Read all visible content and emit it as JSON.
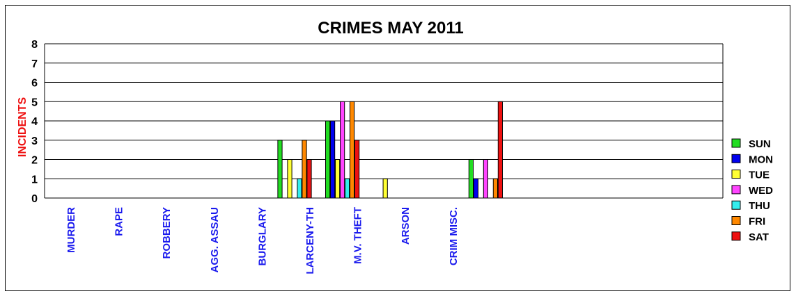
{
  "chart_data": {
    "type": "bar",
    "title": "CRIMES MAY 2011",
    "xlabel": "",
    "ylabel": "INCIDENTS",
    "ylim": [
      0,
      8
    ],
    "yticks": [
      "0",
      "1",
      "2",
      "3",
      "4",
      "5",
      "6",
      "7",
      "8"
    ],
    "grid": true,
    "legend_position": "right",
    "categories": [
      "MURDER",
      "RAPE",
      "ROBBERY",
      "AGG. ASSAU",
      "BURGLARY",
      "LARCENY-TH",
      "M.V. THEFT",
      "ARSON",
      "CRIM MISC."
    ],
    "series": [
      {
        "name": "SUN",
        "color": "#22dd22",
        "values": [
          0,
          0,
          0,
          0,
          3,
          4,
          0,
          0,
          2
        ]
      },
      {
        "name": "MON",
        "color": "#0000ee",
        "values": [
          0,
          0,
          0,
          0,
          0,
          4,
          0,
          0,
          1
        ]
      },
      {
        "name": "TUE",
        "color": "#ffff33",
        "values": [
          0,
          0,
          0,
          0,
          2,
          2,
          1,
          0,
          0
        ]
      },
      {
        "name": "WED",
        "color": "#ff44ff",
        "values": [
          0,
          0,
          0,
          0,
          0,
          5,
          0,
          0,
          2
        ]
      },
      {
        "name": "THU",
        "color": "#33eeee",
        "values": [
          0,
          0,
          0,
          0,
          1,
          1,
          0,
          0,
          0
        ]
      },
      {
        "name": "FRI",
        "color": "#ff8800",
        "values": [
          0,
          0,
          0,
          0,
          3,
          5,
          0,
          0,
          1
        ]
      },
      {
        "name": "SAT",
        "color": "#ee1111",
        "values": [
          0,
          0,
          0,
          0,
          2,
          3,
          0,
          0,
          5
        ]
      }
    ],
    "colors": {
      "title": "#000000",
      "ylabel": "#ee1111",
      "category_labels": "#1a1aee",
      "grid": "#000000"
    }
  }
}
